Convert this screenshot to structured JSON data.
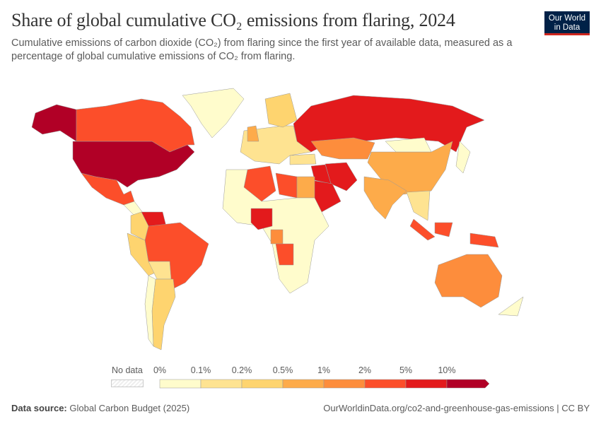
{
  "header": {
    "title": "Share of global cumulative CO₂ emissions from flaring, 2024",
    "subtitle": "Cumulative emissions of carbon dioxide (CO₂) from flaring since the first year of available data, measured as a percentage of global cumulative emissions of CO₂ from flaring.",
    "logo_line1": "Our World",
    "logo_line2": "in Data"
  },
  "legend": {
    "no_data": "No data",
    "bins": [
      {
        "label": "0%",
        "color": "#fffccc"
      },
      {
        "label": "0.1%",
        "color": "#fee391"
      },
      {
        "label": "0.2%",
        "color": "#fed46f"
      },
      {
        "label": "0.5%",
        "color": "#fdab4a"
      },
      {
        "label": "1%",
        "color": "#fd8d3c"
      },
      {
        "label": "2%",
        "color": "#fc4e2a"
      },
      {
        "label": "5%",
        "color": "#e31a1c"
      },
      {
        "label": "10%",
        "color": "#b10026"
      }
    ]
  },
  "map": {
    "ocean_color": "#ffffff",
    "regions": [
      {
        "name": "United States",
        "bin": 7
      },
      {
        "name": "Alaska (US)",
        "bin": 7
      },
      {
        "name": "Canada",
        "bin": 5
      },
      {
        "name": "Greenland",
        "bin": 0
      },
      {
        "name": "Mexico",
        "bin": 5
      },
      {
        "name": "Central America",
        "bin": 0
      },
      {
        "name": "Venezuela",
        "bin": 6
      },
      {
        "name": "Colombia",
        "bin": 2
      },
      {
        "name": "Peru",
        "bin": 2
      },
      {
        "name": "Brazil",
        "bin": 5
      },
      {
        "name": "Bolivia",
        "bin": 1
      },
      {
        "name": "Argentina",
        "bin": 2
      },
      {
        "name": "Chile",
        "bin": 0
      },
      {
        "name": "Europe",
        "bin": 1
      },
      {
        "name": "Norway",
        "bin": 2
      },
      {
        "name": "United Kingdom",
        "bin": 3
      },
      {
        "name": "Turkey",
        "bin": 1
      },
      {
        "name": "Russia",
        "bin": 6
      },
      {
        "name": "Kazakhstan",
        "bin": 4
      },
      {
        "name": "China",
        "bin": 3
      },
      {
        "name": "Mongolia",
        "bin": 0
      },
      {
        "name": "India",
        "bin": 3
      },
      {
        "name": "Southeast Asia",
        "bin": 1
      },
      {
        "name": "Japan",
        "bin": 0
      },
      {
        "name": "Iran",
        "bin": 6
      },
      {
        "name": "Iraq",
        "bin": 6
      },
      {
        "name": "Saudi Arabia",
        "bin": 6
      },
      {
        "name": "Algeria",
        "bin": 5
      },
      {
        "name": "Libya",
        "bin": 5
      },
      {
        "name": "Egypt",
        "bin": 3
      },
      {
        "name": "Africa (other)",
        "bin": 0
      },
      {
        "name": "Nigeria",
        "bin": 6
      },
      {
        "name": "Gabon/Congo",
        "bin": 4
      },
      {
        "name": "Angola",
        "bin": 5
      },
      {
        "name": "Sumatra/Java",
        "bin": 5
      },
      {
        "name": "Borneo",
        "bin": 5
      },
      {
        "name": "New Guinea",
        "bin": 5
      },
      {
        "name": "Australia",
        "bin": 4
      },
      {
        "name": "New Zealand",
        "bin": 0
      }
    ]
  },
  "footer": {
    "source_label": "Data source:",
    "source": "Global Carbon Budget (2025)",
    "url": "OurWorldinData.org/co2-and-greenhouse-gas-emissions | CC BY"
  }
}
